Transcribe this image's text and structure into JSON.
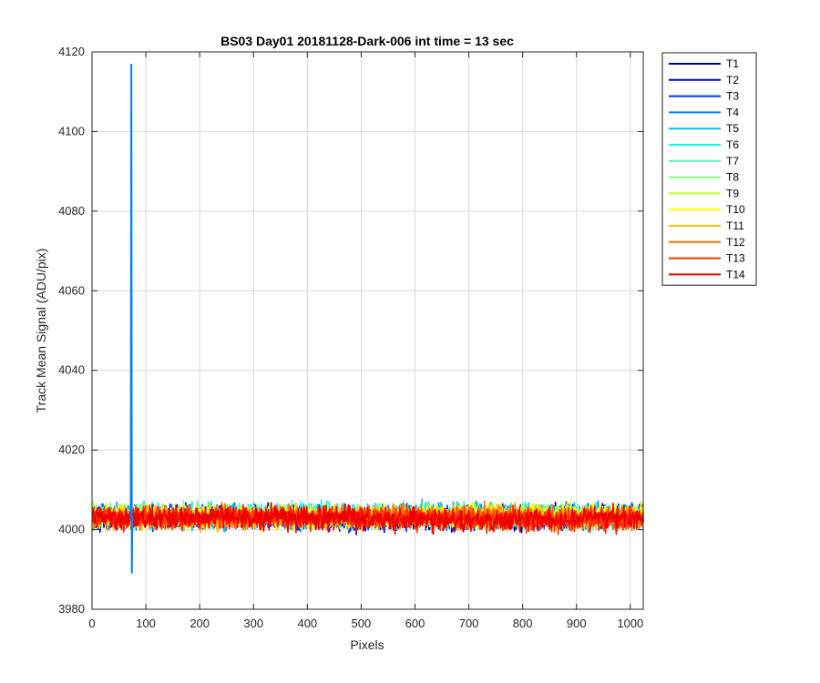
{
  "chart_data": {
    "type": "line",
    "title": "BS03 Day01 20181128-Dark-006 int time = 13 sec",
    "xlabel": "Pixels",
    "ylabel": "Track Mean Signal (ADU/pix)",
    "xlim": [
      0,
      1024
    ],
    "ylim": [
      3980,
      4120
    ],
    "xticks": [
      0,
      100,
      200,
      300,
      400,
      500,
      600,
      700,
      800,
      900,
      1000
    ],
    "yticks": [
      3980,
      4000,
      4020,
      4040,
      4060,
      4080,
      4100,
      4120
    ],
    "grid": true,
    "legend_position": "outside-top-right",
    "spike": {
      "x": [
        72,
        73,
        74,
        75
      ],
      "y": [
        4003,
        4117,
        3989,
        4003
      ]
    },
    "series": [
      {
        "name": "T1",
        "color": "#00008f",
        "mean": 4002.9,
        "noise": 1.4
      },
      {
        "name": "T2",
        "color": "#0000d0",
        "mean": 4003.0,
        "noise": 1.4
      },
      {
        "name": "T3",
        "color": "#0030ff",
        "mean": 4003.1,
        "noise": 1.4
      },
      {
        "name": "T4",
        "color": "#0080ff",
        "mean": 4003.2,
        "noise": 1.4
      },
      {
        "name": "T5",
        "color": "#00c0ff",
        "mean": 4003.4,
        "noise": 1.4
      },
      {
        "name": "T6",
        "color": "#20f0f0",
        "mean": 4003.5,
        "noise": 1.4
      },
      {
        "name": "T7",
        "color": "#60f0c0",
        "mean": 4003.5,
        "noise": 1.4
      },
      {
        "name": "T8",
        "color": "#80ff80",
        "mean": 4003.4,
        "noise": 1.4
      },
      {
        "name": "T9",
        "color": "#c0ff40",
        "mean": 4003.3,
        "noise": 1.4
      },
      {
        "name": "T10",
        "color": "#ffff00",
        "mean": 4003.2,
        "noise": 1.4
      },
      {
        "name": "T11",
        "color": "#ffc000",
        "mean": 4003.1,
        "noise": 1.4
      },
      {
        "name": "T12",
        "color": "#ff7000",
        "mean": 4003.0,
        "noise": 1.4
      },
      {
        "name": "T13",
        "color": "#ff3000",
        "mean": 4002.9,
        "noise": 1.4
      },
      {
        "name": "T14",
        "color": "#ee0000",
        "mean": 4002.8,
        "noise": 1.4
      }
    ]
  }
}
